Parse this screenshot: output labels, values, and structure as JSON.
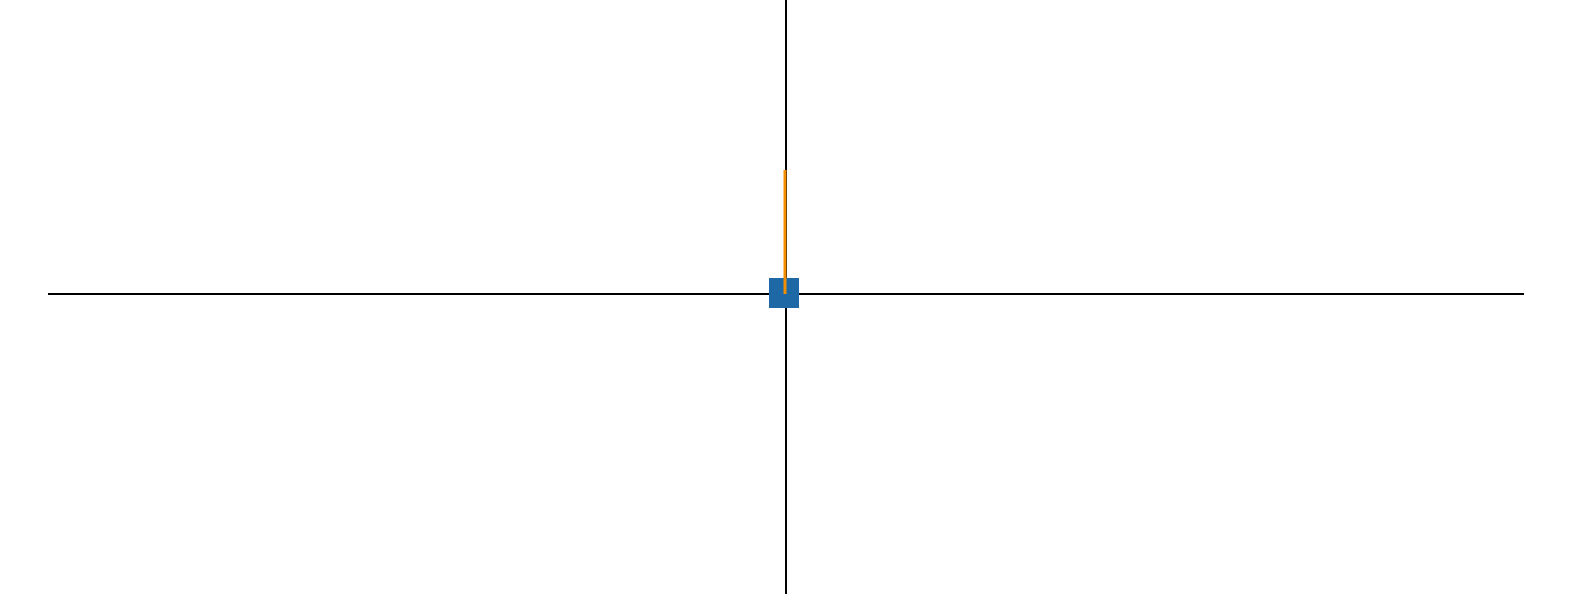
{
  "diagram": {
    "axes_color": "#000000",
    "marker": {
      "shape": "square",
      "color": "#1f68a6"
    },
    "segment": {
      "color": "#f28e00",
      "direction": "up"
    }
  }
}
